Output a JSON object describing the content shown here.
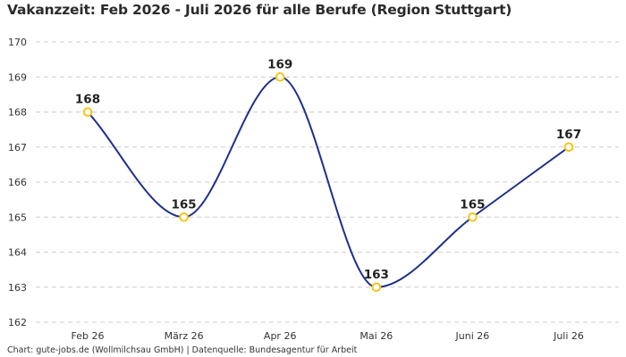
{
  "chart_data": {
    "type": "line",
    "title": "Vakanzzeit: Feb 2026 - Juli 2026 für alle Berufe (Region Stuttgart)",
    "categories": [
      "Feb 26",
      "März 26",
      "Apr 26",
      "Mai 26",
      "Juni 26",
      "Juli 26"
    ],
    "values": [
      168,
      165,
      169,
      163,
      165,
      167
    ],
    "data_labels": [
      "168",
      "165",
      "169",
      "163",
      "165",
      "167"
    ],
    "y_ticks": [
      "162",
      "163",
      "164",
      "165",
      "166",
      "167",
      "168",
      "169",
      "170"
    ],
    "ylim": [
      162,
      170
    ],
    "grid": true,
    "line_color": "#1f2f8a",
    "marker_color": "#f5c518",
    "grid_color": "#cccccc",
    "source": "Chart: gute-jobs.de (Wollmilchsau GmbH) | Datenquelle: Bundesagentur für Arbeit"
  }
}
